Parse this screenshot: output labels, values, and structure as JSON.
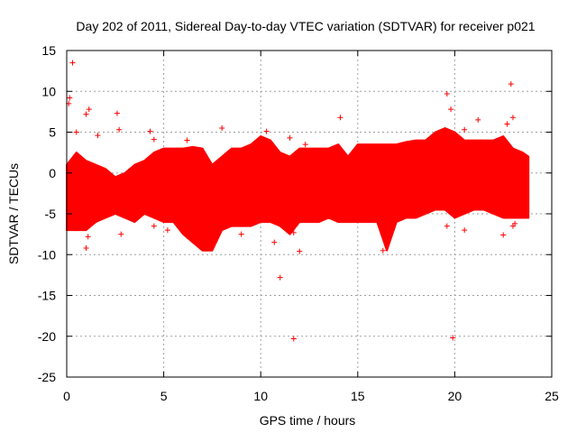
{
  "chart_data": {
    "type": "scatter",
    "title": "Day 202 of 2011, Sidereal Day-to-day VTEC variation (SDTVAR) for receiver p021",
    "xlabel": "GPS time / hours",
    "ylabel": "SDTVAR / TECUs",
    "xlim": [
      0,
      25
    ],
    "ylim": [
      -25,
      15
    ],
    "xticks": [
      0,
      5,
      10,
      15,
      20,
      25
    ],
    "yticks": [
      -25,
      -20,
      -15,
      -10,
      -5,
      0,
      5,
      10,
      15
    ],
    "grid": true,
    "series_color": "#ff0000",
    "marker": "+",
    "band": {
      "x": [
        0.0,
        0.5,
        1.0,
        1.5,
        2.0,
        2.5,
        3.0,
        3.5,
        4.0,
        4.5,
        5.0,
        5.5,
        6.0,
        6.5,
        7.0,
        7.5,
        8.0,
        8.5,
        9.0,
        9.5,
        10.0,
        10.5,
        11.0,
        11.5,
        12.0,
        12.5,
        13.0,
        13.5,
        14.0,
        14.5,
        15.0,
        15.5,
        16.0,
        16.5,
        17.0,
        17.5,
        18.0,
        18.5,
        19.0,
        19.5,
        20.0,
        20.5,
        21.0,
        21.5,
        22.0,
        22.5,
        23.0,
        23.5,
        23.8
      ],
      "upper": [
        1.0,
        2.5,
        1.5,
        1.0,
        0.5,
        -0.5,
        0.0,
        1.0,
        1.5,
        2.5,
        3.0,
        3.0,
        3.0,
        3.2,
        3.0,
        1.0,
        2.0,
        3.0,
        3.0,
        3.5,
        4.5,
        4.0,
        2.5,
        2.0,
        3.0,
        3.0,
        3.0,
        3.0,
        3.5,
        2.0,
        3.5,
        3.5,
        3.5,
        3.5,
        3.5,
        3.8,
        4.0,
        4.0,
        5.0,
        5.5,
        5.0,
        4.0,
        4.0,
        4.0,
        4.0,
        4.5,
        3.0,
        2.5,
        2.0
      ],
      "lower": [
        -7.0,
        -7.0,
        -7.0,
        -6.0,
        -5.5,
        -5.0,
        -5.5,
        -6.0,
        -5.0,
        -5.5,
        -6.0,
        -6.0,
        -7.5,
        -8.5,
        -9.5,
        -9.5,
        -7.0,
        -6.5,
        -6.5,
        -6.5,
        -6.0,
        -6.0,
        -6.5,
        -7.5,
        -6.0,
        -6.0,
        -6.0,
        -5.5,
        -6.0,
        -6.0,
        -6.0,
        -6.0,
        -6.0,
        -9.5,
        -6.0,
        -5.5,
        -5.5,
        -5.0,
        -4.5,
        -4.5,
        -5.5,
        -5.0,
        -4.5,
        -4.5,
        -5.0,
        -5.5,
        -5.5,
        -5.5,
        -5.5
      ]
    },
    "outliers": [
      {
        "x": 0.3,
        "y": 13.5
      },
      {
        "x": 0.15,
        "y": 9.2
      },
      {
        "x": 0.1,
        "y": 8.5
      },
      {
        "x": 0.5,
        "y": 5.0
      },
      {
        "x": 1.0,
        "y": 7.2
      },
      {
        "x": 1.15,
        "y": 7.8
      },
      {
        "x": 1.6,
        "y": 4.6
      },
      {
        "x": 2.6,
        "y": 7.3
      },
      {
        "x": 2.7,
        "y": 5.3
      },
      {
        "x": 4.3,
        "y": 5.1
      },
      {
        "x": 4.5,
        "y": 4.1
      },
      {
        "x": 6.2,
        "y": 4.0
      },
      {
        "x": 8.0,
        "y": 5.5
      },
      {
        "x": 10.3,
        "y": 5.1
      },
      {
        "x": 11.5,
        "y": 4.3
      },
      {
        "x": 12.3,
        "y": 3.5
      },
      {
        "x": 14.1,
        "y": 6.8
      },
      {
        "x": 19.6,
        "y": 9.7
      },
      {
        "x": 19.8,
        "y": 7.8
      },
      {
        "x": 20.5,
        "y": 5.3
      },
      {
        "x": 21.2,
        "y": 6.5
      },
      {
        "x": 22.9,
        "y": 10.9
      },
      {
        "x": 23.0,
        "y": 6.8
      },
      {
        "x": 22.7,
        "y": 6.0
      },
      {
        "x": 1.0,
        "y": -9.2
      },
      {
        "x": 1.1,
        "y": -7.8
      },
      {
        "x": 2.8,
        "y": -7.5
      },
      {
        "x": 4.5,
        "y": -6.5
      },
      {
        "x": 5.2,
        "y": -7.0
      },
      {
        "x": 9.0,
        "y": -7.5
      },
      {
        "x": 10.7,
        "y": -8.5
      },
      {
        "x": 11.0,
        "y": -12.8
      },
      {
        "x": 11.7,
        "y": -6.2
      },
      {
        "x": 11.7,
        "y": -7.3
      },
      {
        "x": 12.0,
        "y": -9.6
      },
      {
        "x": 11.7,
        "y": -20.3
      },
      {
        "x": 16.3,
        "y": -9.5
      },
      {
        "x": 19.6,
        "y": -6.5
      },
      {
        "x": 19.9,
        "y": -20.2
      },
      {
        "x": 20.5,
        "y": -7.0
      },
      {
        "x": 22.5,
        "y": -7.6
      },
      {
        "x": 23.0,
        "y": -6.5
      },
      {
        "x": 23.1,
        "y": -6.2
      }
    ]
  }
}
